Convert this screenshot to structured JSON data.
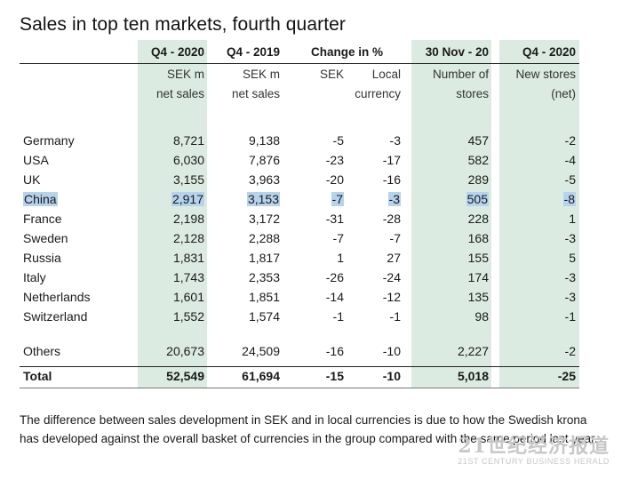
{
  "title": "Sales in top ten markets, fourth quarter",
  "headers": {
    "q4_2020": "Q4 - 2020",
    "q4_2019": "Q4 - 2019",
    "change": "Change in %",
    "nov": "30 Nov - 20",
    "stores": "Q4 - 2020"
  },
  "subheaders_line1": {
    "c1": "SEK m",
    "c2": "SEK m",
    "c3": "SEK",
    "c4": "Local",
    "c5": "Number of",
    "c6": "New stores"
  },
  "subheaders_line2": {
    "c1": "net sales",
    "c2": "net sales",
    "c3": "",
    "c4": "currency",
    "c5": "stores",
    "c6": "(net)"
  },
  "rows": [
    {
      "market": "Germany",
      "s2020": "8,721",
      "s2019": "9,138",
      "sek": "-5",
      "local": "-3",
      "stores": "457",
      "new": "-2"
    },
    {
      "market": "USA",
      "s2020": "6,030",
      "s2019": "7,876",
      "sek": "-23",
      "local": "-17",
      "stores": "582",
      "new": "-4"
    },
    {
      "market": "UK",
      "s2020": "3,155",
      "s2019": "3,963",
      "sek": "-20",
      "local": "-16",
      "stores": "289",
      "new": "-5"
    },
    {
      "market": "China",
      "s2020": "2,917",
      "s2019": "3,153",
      "sek": "-7",
      "local": "-3",
      "stores": "505",
      "new": "-8"
    },
    {
      "market": "France",
      "s2020": "2,198",
      "s2019": "3,172",
      "sek": "-31",
      "local": "-28",
      "stores": "228",
      "new": "1"
    },
    {
      "market": "Sweden",
      "s2020": "2,128",
      "s2019": "2,288",
      "sek": "-7",
      "local": "-7",
      "stores": "168",
      "new": "-3"
    },
    {
      "market": "Russia",
      "s2020": "1,831",
      "s2019": "1,817",
      "sek": "1",
      "local": "27",
      "stores": "155",
      "new": "5"
    },
    {
      "market": "Italy",
      "s2020": "1,743",
      "s2019": "2,353",
      "sek": "-26",
      "local": "-24",
      "stores": "174",
      "new": "-3"
    },
    {
      "market": "Netherlands",
      "s2020": "1,601",
      "s2019": "1,851",
      "sek": "-14",
      "local": "-12",
      "stores": "135",
      "new": "-3"
    },
    {
      "market": "Switzerland",
      "s2020": "1,552",
      "s2019": "1,574",
      "sek": "-1",
      "local": "-1",
      "stores": "98",
      "new": "-1"
    }
  ],
  "others": {
    "market": "Others",
    "s2020": "20,673",
    "s2019": "24,509",
    "sek": "-16",
    "local": "-10",
    "stores": "2,227",
    "new": "-2"
  },
  "total": {
    "market": "Total",
    "s2020": "52,549",
    "s2019": "61,694",
    "sek": "-15",
    "local": "-10",
    "stores": "5,018",
    "new": "-25"
  },
  "footnote": "The difference between sales development in SEK and in local currencies is due to how the Swedish krona has developed against the overall basket of currencies in the group compared with the same period last year.",
  "watermark": {
    "line1": "21世纪经济报道",
    "line2": "21ST CENTURY BUSINESS HERALD"
  },
  "colors": {
    "band": "#dcebe2",
    "highlight": "#b5d3ec"
  }
}
